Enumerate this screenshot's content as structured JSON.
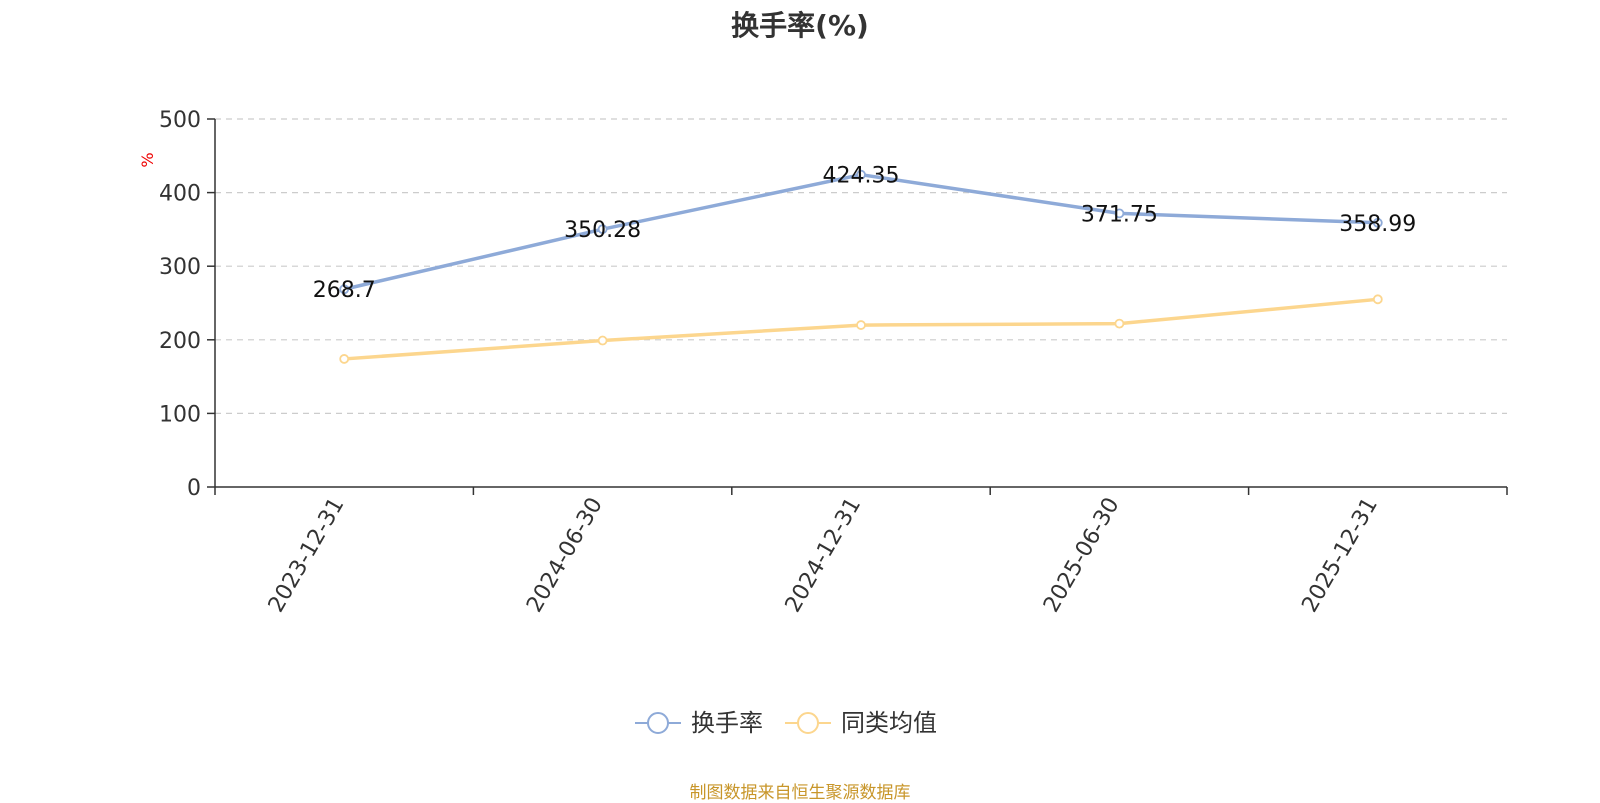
{
  "chart_data": {
    "type": "line",
    "title": "换手率(%)",
    "ylabel": "%",
    "ylim": [
      0,
      500
    ],
    "yticks": [
      0,
      100,
      200,
      300,
      400,
      500
    ],
    "categories": [
      "2023-12-31",
      "2024-06-30",
      "2024-12-31",
      "2025-06-30",
      "2025-12-31"
    ],
    "series": [
      {
        "name": "换手率",
        "values": [
          268.7,
          350.28,
          424.35,
          371.75,
          358.99
        ],
        "color": "#8eaad8",
        "show_labels": true
      },
      {
        "name": "同类均值",
        "values": [
          174,
          199,
          220,
          222,
          255
        ],
        "color": "#fcd68e",
        "show_labels": false
      }
    ],
    "grid": true,
    "legend": "bottom-center",
    "source_note": "制图数据来自恒生聚源数据库"
  }
}
